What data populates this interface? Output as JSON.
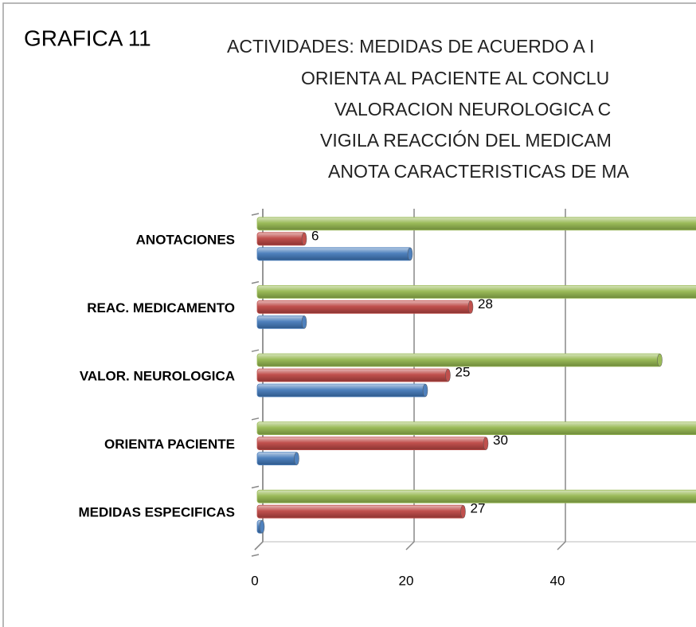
{
  "chart_data": {
    "type": "bar",
    "orientation": "horizontal",
    "title": "GRAFICA 11",
    "subtitle": [
      "ACTIVIDADES: MEDIDAS DE ACUERDO A I",
      "ORIENTA AL PACIENTE AL CONCLU",
      "VALORACION NEUROLOGICA C",
      "VIGILA REACCIÓN DEL MEDICAM",
      "ANOTA CARACTERISTICAS DE MA"
    ],
    "categories": [
      "MEDIDAS ESPECIFICAS",
      "ORIENTA PACIENTE",
      "VALOR. NEUROLOGICA",
      "REAC. MEDICAMENTO",
      "ANOTACIONES"
    ],
    "series": [
      {
        "color": "#9bbb59",
        "values": [
          60,
          60,
          53,
          60,
          60
        ]
      },
      {
        "color": "#c0504d",
        "values": [
          27,
          30,
          25,
          28,
          6
        ],
        "show_labels": true
      },
      {
        "color": "#4f81bd",
        "values": [
          0,
          5,
          22,
          6,
          20
        ]
      }
    ],
    "xlim": [
      0,
      60
    ],
    "xticks": [
      0,
      20,
      40
    ],
    "grid": true
  }
}
